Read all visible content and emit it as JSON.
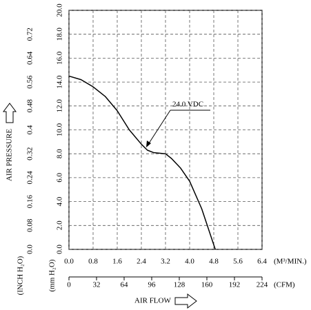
{
  "chart_data": {
    "type": "line",
    "x_label": "AIR FLOW",
    "y_label": "AIR PRESSURE",
    "x_unit": "(M³/MIN.)",
    "x2_unit": "(CFM)",
    "y_unit": "(mm H₂O)",
    "y2_unit": "(INCH H₂O)",
    "x": [
      0,
      0.4,
      0.8,
      1.2,
      1.6,
      2.0,
      2.4,
      2.6,
      2.8,
      3.2,
      3.4,
      3.7,
      4.0,
      4.4,
      4.85
    ],
    "series": [
      {
        "name": "24.0 VDC",
        "color": "#000000",
        "values": [
          14.5,
          14.2,
          13.6,
          12.8,
          11.6,
          10.0,
          8.8,
          8.3,
          8.1,
          8.0,
          7.6,
          6.8,
          5.7,
          3.4,
          0
        ]
      }
    ],
    "xlim": [
      0,
      6.4
    ],
    "xticks": [
      {
        "value": 0,
        "label": "0.0"
      },
      0.8,
      1.6,
      2.4,
      3.2,
      {
        "value": 4,
        "label": "4.0"
      },
      4.8,
      5.6,
      6.4
    ],
    "x2lim": [
      0,
      224
    ],
    "x2ticks": [
      0,
      32,
      64,
      96,
      128,
      160,
      192,
      224
    ],
    "ylim": [
      0,
      20
    ],
    "yticks": [
      {
        "value": 0,
        "label": "0.0"
      },
      {
        "value": 2,
        "label": "2.0"
      },
      {
        "value": 4,
        "label": "4.0"
      },
      {
        "value": 6,
        "label": "6.0"
      },
      {
        "value": 8,
        "label": "8.0"
      },
      {
        "value": 10,
        "label": "10.0"
      },
      {
        "value": 12,
        "label": "12.0"
      },
      {
        "value": 14,
        "label": "14.0"
      },
      {
        "value": 16,
        "label": "16.0"
      },
      {
        "value": 18,
        "label": "18.0"
      },
      {
        "value": 20,
        "label": "20.0"
      }
    ],
    "y2lim": [
      0,
      0.8
    ],
    "y2ticks": [
      {
        "value": 0,
        "label": "0.0"
      },
      0.08,
      0.16,
      0.24,
      0.32,
      0.4,
      0.48,
      0.56,
      0.64,
      0.72
    ],
    "grid": true
  }
}
